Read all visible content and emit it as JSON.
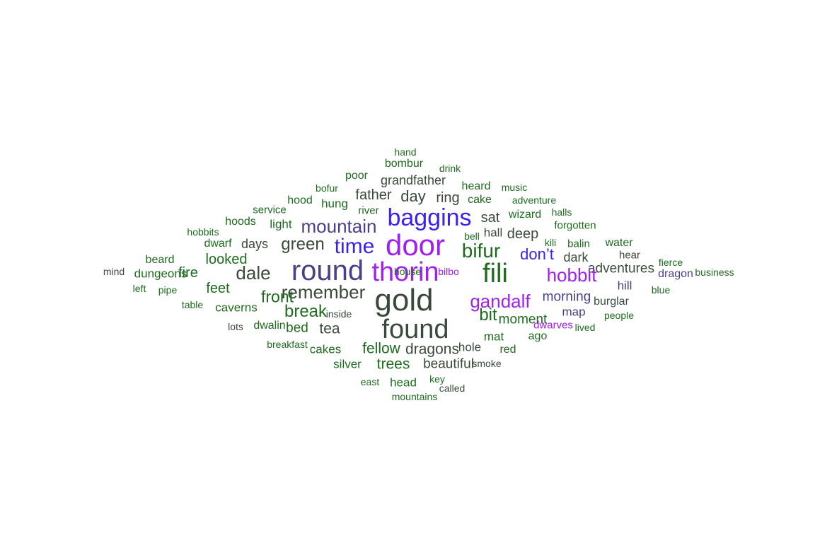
{
  "colors": {
    "large": "#a020f0",
    "medium": "#3b22ee",
    "slate": "#4b3f8c",
    "grey": "#3a4a3a",
    "small": "#1e6b1e"
  },
  "words": [
    {
      "text": "hand",
      "color": "small"
    },
    {
      "text": "bombur",
      "color": "small"
    },
    {
      "text": "drink",
      "color": "small"
    },
    {
      "text": "poor",
      "color": "small"
    },
    {
      "text": "grandfather",
      "color": "grey"
    },
    {
      "text": "bofur",
      "color": "small"
    },
    {
      "text": "heard",
      "color": "small"
    },
    {
      "text": "music",
      "color": "small"
    },
    {
      "text": "father",
      "color": "grey"
    },
    {
      "text": "day",
      "color": "grey"
    },
    {
      "text": "ring",
      "color": "grey"
    },
    {
      "text": "cake",
      "color": "small"
    },
    {
      "text": "hood",
      "color": "small"
    },
    {
      "text": "hung",
      "color": "small"
    },
    {
      "text": "adventure",
      "color": "small"
    },
    {
      "text": "service",
      "color": "small"
    },
    {
      "text": "river",
      "color": "small"
    },
    {
      "text": "baggins",
      "color": "medium"
    },
    {
      "text": "sat",
      "color": "grey"
    },
    {
      "text": "wizard",
      "color": "small"
    },
    {
      "text": "halls",
      "color": "small"
    },
    {
      "text": "hoods",
      "color": "small"
    },
    {
      "text": "light",
      "color": "small"
    },
    {
      "text": "mountain",
      "color": "slate"
    },
    {
      "text": "forgotten",
      "color": "small"
    },
    {
      "text": "hobbits",
      "color": "small"
    },
    {
      "text": "hall",
      "color": "grey"
    },
    {
      "text": "deep",
      "color": "grey"
    },
    {
      "text": "bell",
      "color": "small"
    },
    {
      "text": "kili",
      "color": "small"
    },
    {
      "text": "balin",
      "color": "small"
    },
    {
      "text": "water",
      "color": "small"
    },
    {
      "text": "dwarf",
      "color": "small"
    },
    {
      "text": "days",
      "color": "grey"
    },
    {
      "text": "green",
      "color": "grey"
    },
    {
      "text": "time",
      "color": "medium"
    },
    {
      "text": "door",
      "color": "large"
    },
    {
      "text": "bifur",
      "color": "small"
    },
    {
      "text": "don’t",
      "color": "medium"
    },
    {
      "text": "dark",
      "color": "grey"
    },
    {
      "text": "hear",
      "color": "grey"
    },
    {
      "text": "fierce",
      "color": "small"
    },
    {
      "text": "beard",
      "color": "small"
    },
    {
      "text": "looked",
      "color": "small"
    },
    {
      "text": "adventures",
      "color": "grey"
    },
    {
      "text": "mind",
      "color": "grey"
    },
    {
      "text": "dungeons",
      "color": "small"
    },
    {
      "text": "fire",
      "color": "small"
    },
    {
      "text": "dale",
      "color": "grey"
    },
    {
      "text": "round",
      "color": "slate"
    },
    {
      "text": "thorin",
      "color": "large"
    },
    {
      "text": "bilbo",
      "color": "large"
    },
    {
      "text": "fili",
      "color": "small"
    },
    {
      "text": "hobbit",
      "color": "large"
    },
    {
      "text": "dragon",
      "color": "slate"
    },
    {
      "text": "business",
      "color": "small"
    },
    {
      "text": "left",
      "color": "small"
    },
    {
      "text": "pipe",
      "color": "small"
    },
    {
      "text": "feet",
      "color": "small"
    },
    {
      "text": "remember",
      "color": "grey"
    },
    {
      "text": "hill",
      "color": "slate"
    },
    {
      "text": "blue",
      "color": "small"
    },
    {
      "text": "front",
      "color": "small"
    },
    {
      "text": "gold",
      "color": "grey"
    },
    {
      "text": "gandalf",
      "color": "large"
    },
    {
      "text": "morning",
      "color": "slate"
    },
    {
      "text": "burglar",
      "color": "grey"
    },
    {
      "text": "table",
      "color": "small"
    },
    {
      "text": "caverns",
      "color": "small"
    },
    {
      "text": "break",
      "color": "small"
    },
    {
      "text": "inside",
      "color": "grey"
    },
    {
      "text": "bit",
      "color": "small"
    },
    {
      "text": "map",
      "color": "slate"
    },
    {
      "text": "people",
      "color": "small"
    },
    {
      "text": "moment",
      "color": "small"
    },
    {
      "text": "lots",
      "color": "grey"
    },
    {
      "text": "dwalin",
      "color": "small"
    },
    {
      "text": "bed",
      "color": "small"
    },
    {
      "text": "tea",
      "color": "grey"
    },
    {
      "text": "found",
      "color": "grey"
    },
    {
      "text": "dwarves",
      "color": "large"
    },
    {
      "text": "lived",
      "color": "small"
    },
    {
      "text": "mat",
      "color": "small"
    },
    {
      "text": "ago",
      "color": "small"
    },
    {
      "text": "breakfast",
      "color": "small"
    },
    {
      "text": "cakes",
      "color": "small"
    },
    {
      "text": "fellow",
      "color": "small"
    },
    {
      "text": "dragons",
      "color": "grey"
    },
    {
      "text": "hole",
      "color": "grey"
    },
    {
      "text": "red",
      "color": "small"
    },
    {
      "text": "silver",
      "color": "small"
    },
    {
      "text": "trees",
      "color": "small"
    },
    {
      "text": "beautiful",
      "color": "grey"
    },
    {
      "text": "smoke",
      "color": "grey"
    },
    {
      "text": "key",
      "color": "small"
    },
    {
      "text": "east",
      "color": "small"
    },
    {
      "text": "head",
      "color": "small"
    },
    {
      "text": "called",
      "color": "grey"
    },
    {
      "text": "mountains",
      "color": "small"
    },
    {
      "text": "house",
      "color": "small"
    }
  ]
}
